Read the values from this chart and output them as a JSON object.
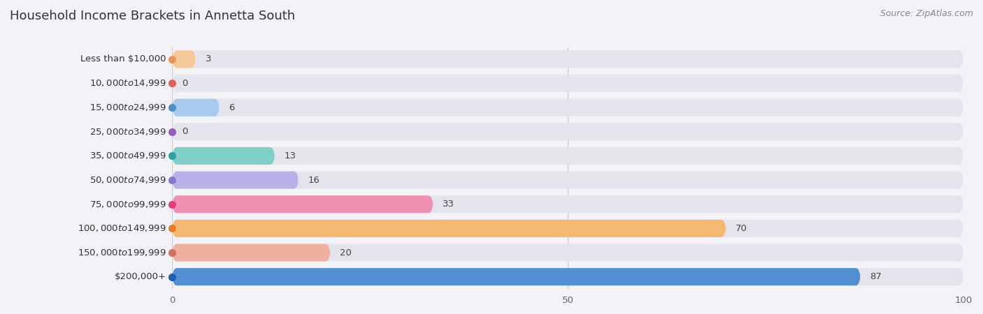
{
  "title": "Household Income Brackets in Annetta South",
  "source": "Source: ZipAtlas.com",
  "categories": [
    "Less than $10,000",
    "$10,000 to $14,999",
    "$15,000 to $24,999",
    "$25,000 to $34,999",
    "$35,000 to $49,999",
    "$50,000 to $74,999",
    "$75,000 to $99,999",
    "$100,000 to $149,999",
    "$150,000 to $199,999",
    "$200,000+"
  ],
  "values": [
    3,
    0,
    6,
    0,
    13,
    16,
    33,
    70,
    20,
    87
  ],
  "bar_colors": [
    "#f5c89a",
    "#f5a8a8",
    "#a8caf0",
    "#caaae8",
    "#82cec8",
    "#b8b2e8",
    "#f090b0",
    "#f5b870",
    "#f0b0a0",
    "#5090d0"
  ],
  "dot_colors": [
    "#e8955a",
    "#e06060",
    "#5090c8",
    "#9060c0",
    "#30a0a0",
    "#8878d0",
    "#e04080",
    "#e08030",
    "#d07060",
    "#2060b0"
  ],
  "xlim": [
    0,
    100
  ],
  "xticks": [
    0,
    50,
    100
  ],
  "background_color": "#f2f2f7",
  "bar_bg_color": "#e4e4ec",
  "title_fontsize": 13,
  "label_fontsize": 9.5,
  "value_fontsize": 9.5,
  "source_fontsize": 9
}
